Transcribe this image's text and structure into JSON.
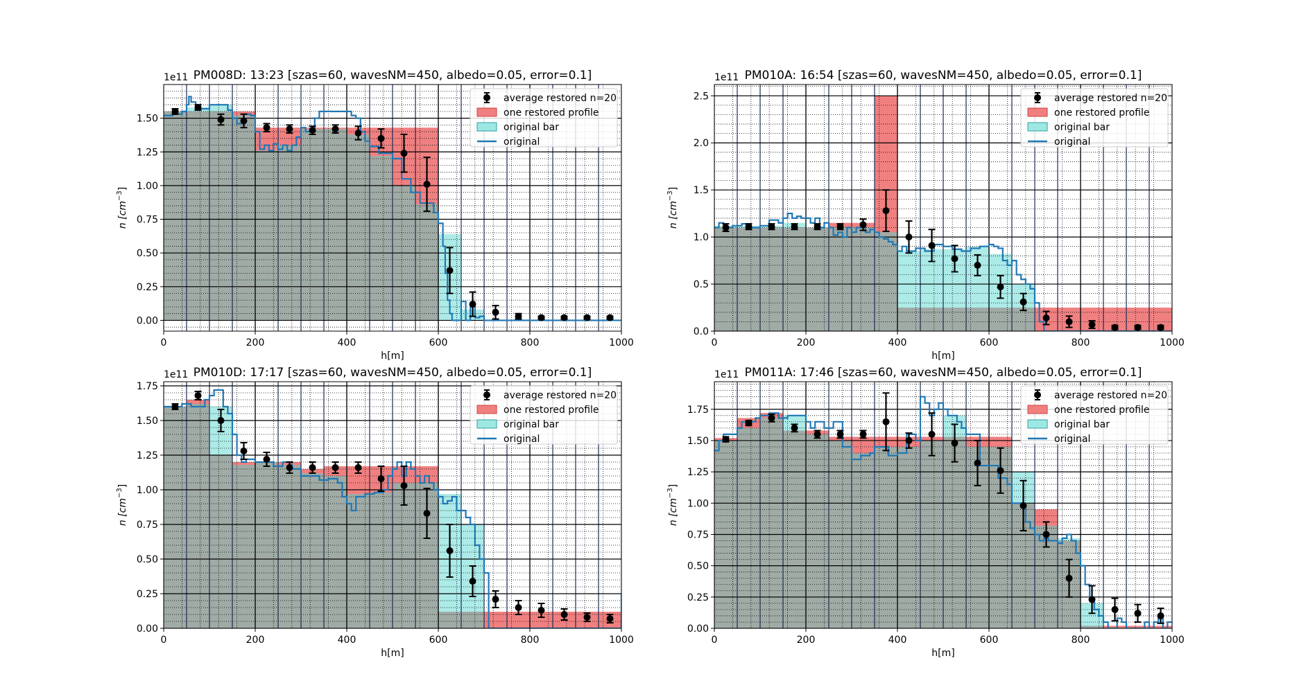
{
  "colors": {
    "restored_bar": "#f08080",
    "original_bar": "#9ee8e4",
    "overlap": "#a0aba5",
    "original_line": "#1f77b4",
    "average_marker": "#000000",
    "gridlines": "#000000"
  },
  "legend": {
    "average": "average restored n=20",
    "restored": "one restored profile",
    "original_bar": "original bar",
    "original": "original"
  },
  "chart_data": [
    {
      "type": "bar",
      "title": "PM008D: 13:23 [szas=60, wavesNM=450, albedo=0.05, error=0.1]",
      "xlabel": "h[m]",
      "ylabel": "n [cm^-3]",
      "ylabel_base": "n [cm",
      "ylabel_exp": "−3",
      "ylabel_close": "]",
      "scale_label": "1e11",
      "xlim": [
        0,
        1000
      ],
      "ylim": [
        -0.08,
        1.75
      ],
      "xticks": [
        0,
        200,
        400,
        600,
        800,
        1000
      ],
      "yticks": [
        0,
        0.25,
        0.5,
        0.75,
        1.0,
        1.25,
        1.5
      ],
      "ytick_labels": [
        "0.00",
        "0.25",
        "0.50",
        "0.75",
        "1.00",
        "1.25",
        "1.50"
      ],
      "legend_position": "top-right",
      "grid": true,
      "restored_bar": {
        "edges": [
          0,
          200,
          400,
          600,
          1000
        ],
        "values": [
          1.55,
          1.43,
          1.43,
          0
        ]
      },
      "original_bar": {
        "edges": [
          0,
          50,
          100,
          150,
          200,
          250,
          300,
          350,
          400,
          450,
          500,
          550,
          600,
          650,
          700,
          1000
        ],
        "values": [
          1.55,
          1.58,
          1.6,
          1.52,
          1.26,
          1.3,
          1.42,
          1.42,
          1.38,
          1.22,
          1.0,
          0.86,
          0.64,
          0.08,
          0.0
        ]
      },
      "original_line": {
        "x": [
          0,
          20,
          40,
          50,
          55,
          60,
          70,
          80,
          100,
          120,
          140,
          150,
          160,
          175,
          190,
          200,
          210,
          220,
          230,
          240,
          250,
          260,
          270,
          280,
          290,
          300,
          310,
          320,
          330,
          340,
          350,
          370,
          390,
          410,
          420,
          430,
          440,
          450,
          470,
          490,
          500,
          520,
          540,
          560,
          580,
          590,
          600,
          610,
          615,
          620,
          625,
          630,
          640,
          650,
          660,
          670,
          680,
          690,
          700,
          720,
          1000
        ],
        "y": [
          1.52,
          1.53,
          1.55,
          1.6,
          1.66,
          1.62,
          1.57,
          1.57,
          1.6,
          1.6,
          1.56,
          1.5,
          1.46,
          1.53,
          1.52,
          1.4,
          1.27,
          1.3,
          1.26,
          1.31,
          1.27,
          1.3,
          1.26,
          1.3,
          1.36,
          1.43,
          1.4,
          1.42,
          1.5,
          1.55,
          1.55,
          1.55,
          1.55,
          1.52,
          1.5,
          1.4,
          1.33,
          1.29,
          1.24,
          1.24,
          1.2,
          1.05,
          0.95,
          0.87,
          0.87,
          0.8,
          0.72,
          0.55,
          0.35,
          0.15,
          0.05,
          0.0,
          0.0,
          0.14,
          0.0,
          0.1,
          0.02,
          0.03,
          0.0,
          0.0,
          0.0
        ]
      },
      "average": {
        "x": [
          25,
          75,
          125,
          175,
          225,
          275,
          325,
          375,
          425,
          475,
          525,
          575,
          625,
          675,
          725,
          775,
          825,
          875,
          925,
          975
        ],
        "y": [
          1.55,
          1.58,
          1.49,
          1.48,
          1.43,
          1.42,
          1.41,
          1.42,
          1.39,
          1.35,
          1.24,
          1.01,
          0.37,
          0.12,
          0.06,
          0.03,
          0.02,
          0.02,
          0.02,
          0.02
        ],
        "err": [
          0.02,
          0.02,
          0.04,
          0.05,
          0.03,
          0.03,
          0.03,
          0.03,
          0.05,
          0.07,
          0.14,
          0.2,
          0.17,
          0.09,
          0.05,
          0.02,
          0.01,
          0.01,
          0.01,
          0.01
        ]
      }
    },
    {
      "type": "bar",
      "title": "PM010A: 16:54 [szas=60, wavesNM=450, albedo=0.05, error=0.1]",
      "xlabel": "h[m]",
      "ylabel": "n [cm^-3]",
      "ylabel_base": "n [cm",
      "ylabel_exp": "−3",
      "ylabel_close": "]",
      "scale_label": "1e11",
      "xlim": [
        0,
        1000
      ],
      "ylim": [
        0,
        2.62
      ],
      "xticks": [
        0,
        200,
        400,
        600,
        800,
        1000
      ],
      "yticks": [
        0,
        0.5,
        1.0,
        1.5,
        2.0,
        2.5
      ],
      "ytick_labels": [
        "0.0",
        "0.5",
        "1.0",
        "1.5",
        "2.0",
        "2.5"
      ],
      "legend_position": "top-right",
      "grid": true,
      "restored_bar": {
        "edges": [
          0,
          250,
          350,
          400,
          700,
          1000
        ],
        "values": [
          1.1,
          1.15,
          2.5,
          0.25,
          0.25
        ]
      },
      "original_bar": {
        "edges": [
          0,
          50,
          100,
          150,
          200,
          250,
          300,
          350,
          400,
          450,
          500,
          550,
          600,
          650,
          700,
          1000
        ],
        "values": [
          1.12,
          1.12,
          1.12,
          1.15,
          1.1,
          1.1,
          1.1,
          1.05,
          0.85,
          0.87,
          0.87,
          0.9,
          0.82,
          0.5,
          0.0
        ]
      },
      "original_line": {
        "x": [
          0,
          10,
          20,
          40,
          60,
          80,
          100,
          120,
          140,
          150,
          160,
          170,
          180,
          190,
          200,
          210,
          220,
          230,
          240,
          250,
          260,
          270,
          280,
          290,
          300,
          310,
          320,
          330,
          340,
          350,
          360,
          370,
          380,
          390,
          400,
          410,
          420,
          440,
          460,
          480,
          500,
          520,
          540,
          560,
          580,
          600,
          610,
          620,
          630,
          640,
          650,
          660,
          670,
          680,
          690,
          700,
          710,
          720,
          1000
        ],
        "y": [
          1.1,
          1.15,
          1.1,
          1.12,
          1.14,
          1.1,
          1.12,
          1.18,
          1.15,
          1.2,
          1.25,
          1.2,
          1.22,
          1.2,
          1.2,
          1.15,
          1.2,
          1.1,
          1.15,
          1.1,
          1.02,
          1.05,
          1.0,
          1.1,
          1.05,
          1.1,
          1.1,
          1.05,
          1.08,
          1.05,
          1.0,
          0.98,
          0.95,
          0.92,
          0.85,
          0.9,
          0.85,
          0.88,
          0.85,
          0.92,
          0.9,
          0.87,
          0.85,
          0.88,
          0.9,
          0.92,
          0.9,
          0.88,
          0.75,
          0.7,
          0.75,
          0.6,
          0.55,
          0.5,
          0.45,
          0.3,
          0.1,
          0.0,
          0.0
        ]
      },
      "average": {
        "x": [
          25,
          75,
          125,
          175,
          225,
          275,
          325,
          375,
          425,
          475,
          525,
          575,
          625,
          675,
          725,
          775,
          825,
          875,
          925,
          975
        ],
        "y": [
          1.1,
          1.11,
          1.11,
          1.11,
          1.11,
          1.11,
          1.13,
          1.28,
          1.0,
          0.91,
          0.77,
          0.7,
          0.47,
          0.31,
          0.14,
          0.1,
          0.07,
          0.04,
          0.04,
          0.04
        ],
        "err": [
          0.04,
          0.03,
          0.03,
          0.03,
          0.03,
          0.03,
          0.06,
          0.22,
          0.17,
          0.17,
          0.14,
          0.11,
          0.12,
          0.09,
          0.07,
          0.06,
          0.04,
          0.02,
          0.02,
          0.02
        ]
      }
    },
    {
      "type": "bar",
      "title": "PM010D: 17:17 [szas=60, wavesNM=450, albedo=0.05, error=0.1]",
      "xlabel": "h[m]",
      "ylabel": "n [cm^-3]",
      "ylabel_base": "n [cm",
      "ylabel_exp": "−3",
      "ylabel_close": "]",
      "scale_label": "1e11",
      "xlim": [
        0,
        1000
      ],
      "ylim": [
        0,
        1.78
      ],
      "xticks": [
        0,
        200,
        400,
        600,
        800,
        1000
      ],
      "yticks": [
        0,
        0.25,
        0.5,
        0.75,
        1.0,
        1.25,
        1.5,
        1.75
      ],
      "ytick_labels": [
        "0.00",
        "0.25",
        "0.50",
        "0.75",
        "1.00",
        "1.25",
        "1.50",
        "1.75"
      ],
      "legend_position": "top-right",
      "grid": true,
      "restored_bar": {
        "edges": [
          0,
          50,
          100,
          150,
          300,
          350,
          600,
          700,
          1000
        ],
        "values": [
          1.6,
          1.65,
          1.25,
          1.2,
          1.15,
          1.17,
          0.12,
          0.12
        ]
      },
      "original_bar": {
        "edges": [
          0,
          50,
          100,
          150,
          200,
          250,
          300,
          350,
          400,
          450,
          500,
          550,
          600,
          650,
          700,
          1000
        ],
        "values": [
          1.6,
          1.62,
          1.6,
          1.18,
          1.2,
          1.18,
          1.12,
          1.1,
          0.97,
          0.98,
          1.05,
          1.05,
          0.97,
          0.75,
          0.0
        ]
      },
      "original_line": {
        "x": [
          0,
          20,
          40,
          60,
          80,
          90,
          100,
          110,
          120,
          130,
          140,
          150,
          160,
          170,
          180,
          200,
          220,
          240,
          260,
          280,
          300,
          320,
          340,
          360,
          380,
          390,
          400,
          410,
          420,
          440,
          460,
          480,
          490,
          500,
          510,
          520,
          530,
          540,
          550,
          560,
          570,
          580,
          590,
          600,
          610,
          620,
          630,
          640,
          650,
          660,
          670,
          680,
          690,
          700,
          710,
          990,
          1000
        ],
        "y": [
          1.6,
          1.6,
          1.62,
          1.6,
          1.6,
          1.65,
          1.68,
          1.72,
          1.72,
          1.6,
          1.55,
          1.4,
          1.25,
          1.2,
          1.22,
          1.2,
          1.2,
          1.17,
          1.2,
          1.15,
          1.1,
          1.1,
          1.07,
          1.08,
          1.05,
          0.95,
          0.9,
          0.85,
          0.95,
          0.97,
          0.98,
          1.0,
          1.1,
          1.15,
          1.2,
          1.1,
          1.2,
          1.15,
          1.1,
          1.05,
          1.1,
          1.05,
          1.0,
          0.95,
          0.9,
          0.92,
          0.95,
          0.85,
          0.85,
          0.8,
          0.75,
          0.6,
          0.5,
          0.4,
          0.0,
          0.0,
          0.25
        ]
      },
      "average": {
        "x": [
          25,
          75,
          125,
          175,
          225,
          275,
          325,
          375,
          425,
          475,
          525,
          575,
          625,
          675,
          725,
          775,
          825,
          875,
          925,
          975
        ],
        "y": [
          1.6,
          1.68,
          1.5,
          1.28,
          1.22,
          1.16,
          1.16,
          1.16,
          1.16,
          1.08,
          1.03,
          0.83,
          0.56,
          0.34,
          0.21,
          0.15,
          0.13,
          0.1,
          0.08,
          0.07
        ],
        "err": [
          0.02,
          0.03,
          0.08,
          0.06,
          0.05,
          0.04,
          0.04,
          0.04,
          0.04,
          0.09,
          0.14,
          0.18,
          0.19,
          0.11,
          0.06,
          0.05,
          0.05,
          0.04,
          0.03,
          0.03
        ]
      }
    },
    {
      "type": "bar",
      "title": "PM011A: 17:46 [szas=60, wavesNM=450, albedo=0.05, error=0.1]",
      "xlabel": "h[m]",
      "ylabel": "n [cm^-3]",
      "ylabel_base": "n [cm",
      "ylabel_exp": "−3",
      "ylabel_close": "]",
      "scale_label": "1e11",
      "xlim": [
        0,
        1000
      ],
      "ylim": [
        0,
        1.97
      ],
      "xticks": [
        0,
        200,
        400,
        600,
        800,
        1000
      ],
      "yticks": [
        0,
        0.25,
        0.5,
        0.75,
        1.0,
        1.25,
        1.5,
        1.75
      ],
      "ytick_labels": [
        "0.00",
        "0.25",
        "0.50",
        "0.75",
        "1.00",
        "1.25",
        "1.50",
        "1.75"
      ],
      "legend_position": "top-right",
      "grid": true,
      "restored_bar": {
        "edges": [
          0,
          50,
          100,
          150,
          250,
          450,
          550,
          650,
          700,
          750,
          800,
          1000
        ],
        "values": [
          1.52,
          1.68,
          1.72,
          1.58,
          1.53,
          1.53,
          1.53,
          1.0,
          0.95,
          0.7,
          0.02,
          0.0
        ]
      },
      "original_bar": {
        "edges": [
          0,
          50,
          100,
          150,
          200,
          250,
          300,
          350,
          400,
          450,
          500,
          550,
          600,
          650,
          700,
          750,
          800,
          850,
          1000
        ],
        "values": [
          1.5,
          1.6,
          1.68,
          1.7,
          1.55,
          1.5,
          1.4,
          1.45,
          1.45,
          1.5,
          1.7,
          1.45,
          1.45,
          1.25,
          0.82,
          0.72,
          0.2,
          0.0
        ]
      },
      "original_line": {
        "x": [
          0,
          10,
          20,
          40,
          50,
          60,
          80,
          90,
          100,
          120,
          140,
          160,
          180,
          200,
          210,
          220,
          240,
          260,
          280,
          300,
          320,
          340,
          350,
          360,
          380,
          400,
          420,
          440,
          450,
          460,
          470,
          480,
          490,
          500,
          510,
          520,
          530,
          540,
          550,
          560,
          580,
          600,
          620,
          640,
          650,
          660,
          680,
          690,
          700,
          710,
          720,
          730,
          740,
          750,
          760,
          770,
          780,
          790,
          800,
          810,
          820,
          830,
          840,
          850,
          860,
          870,
          880,
          890,
          900,
          910,
          920,
          930,
          940,
          950,
          960,
          970,
          980,
          990,
          1000
        ],
        "y": [
          1.42,
          1.5,
          1.55,
          1.55,
          1.6,
          1.65,
          1.65,
          1.68,
          1.7,
          1.72,
          1.68,
          1.7,
          1.7,
          1.65,
          1.6,
          1.65,
          1.6,
          1.65,
          1.45,
          1.35,
          1.38,
          1.4,
          1.45,
          1.45,
          1.38,
          1.4,
          1.55,
          1.5,
          1.85,
          1.8,
          1.7,
          1.75,
          1.8,
          1.75,
          1.7,
          1.7,
          1.65,
          1.6,
          1.55,
          1.55,
          1.3,
          1.3,
          1.2,
          1.15,
          1.0,
          1.0,
          0.85,
          0.8,
          0.75,
          0.7,
          0.72,
          0.7,
          0.7,
          0.68,
          0.72,
          0.75,
          0.7,
          0.6,
          0.5,
          0.35,
          0.25,
          0.15,
          0.1,
          0.05,
          0.0,
          0.0,
          0.08,
          0.05,
          0.0,
          0.0,
          0.0,
          0.0,
          0.05,
          0.0,
          0.05,
          0.08,
          0.0,
          0.05,
          0.05
        ]
      },
      "average": {
        "x": [
          25,
          75,
          125,
          175,
          225,
          275,
          325,
          375,
          425,
          475,
          525,
          575,
          625,
          675,
          725,
          775,
          825,
          875,
          925,
          975
        ],
        "y": [
          1.51,
          1.64,
          1.68,
          1.6,
          1.55,
          1.55,
          1.55,
          1.65,
          1.5,
          1.55,
          1.48,
          1.32,
          1.26,
          0.98,
          0.75,
          0.4,
          0.23,
          0.15,
          0.12,
          0.1
        ],
        "err": [
          0.02,
          0.02,
          0.03,
          0.03,
          0.03,
          0.03,
          0.03,
          0.23,
          0.06,
          0.17,
          0.15,
          0.18,
          0.18,
          0.2,
          0.1,
          0.15,
          0.11,
          0.09,
          0.07,
          0.06
        ]
      }
    }
  ]
}
